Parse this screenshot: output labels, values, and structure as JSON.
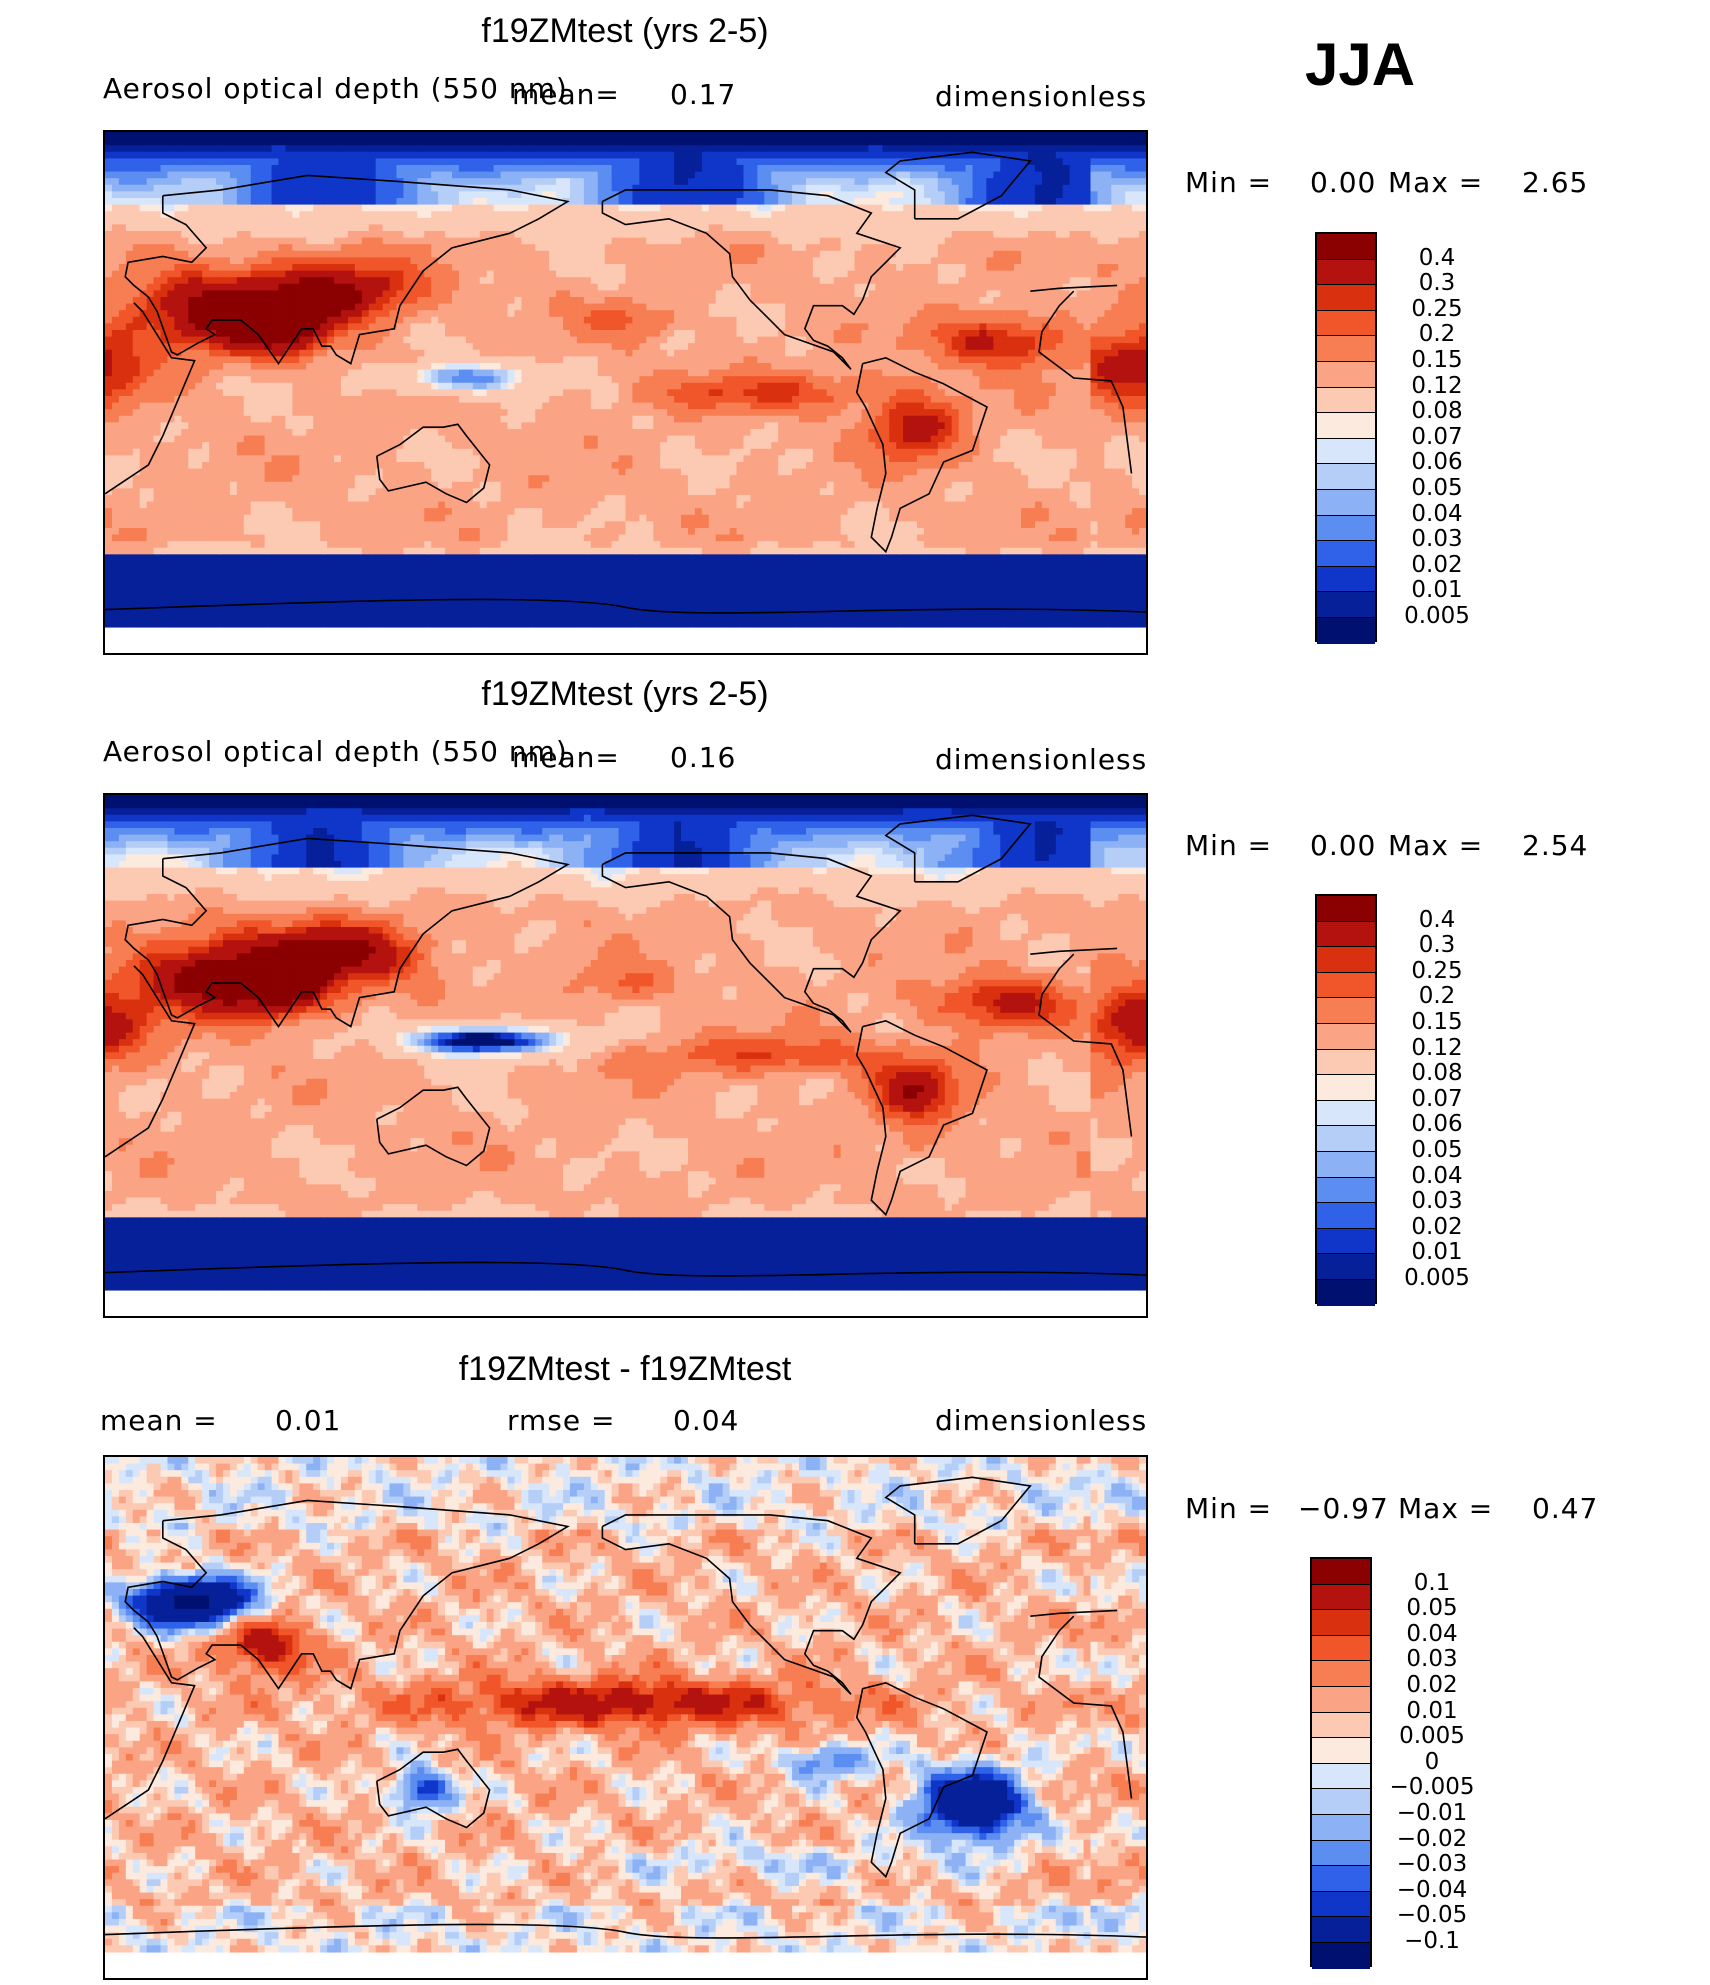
{
  "season": "JJA",
  "chart_data": [
    {
      "type": "heatmap",
      "title": "f19ZMtest (yrs 2-5)",
      "variable": "Aerosol optical depth (550 nm)",
      "units": "dimensionless",
      "mean_label": "mean=",
      "mean": "0.17",
      "min_label": "Min =",
      "min": "0.00",
      "max_label": "Max =",
      "max": "2.65",
      "levels": [
        "0.4",
        "0.3",
        "0.25",
        "0.2",
        "0.15",
        "0.12",
        "0.08",
        "0.07",
        "0.06",
        "0.05",
        "0.04",
        "0.03",
        "0.02",
        "0.01",
        "0.005"
      ],
      "colors": [
        "#8b0000",
        "#b4120e",
        "#d9300f",
        "#f0562a",
        "#f77d52",
        "#fba485",
        "#fccab3",
        "#fdeadf",
        "#d7e6fa",
        "#b5cef8",
        "#8cb1f5",
        "#5b8ef0",
        "#2f62e8",
        "#0f36c8",
        "#06209a",
        "#001070"
      ]
    },
    {
      "type": "heatmap",
      "title": "f19ZMtest (yrs 2-5)",
      "variable": "Aerosol optical depth (550 nm)",
      "units": "dimensionless",
      "mean_label": "mean=",
      "mean": "0.16",
      "min_label": "Min =",
      "min": "0.00",
      "max_label": "Max =",
      "max": "2.54",
      "levels": [
        "0.4",
        "0.3",
        "0.25",
        "0.2",
        "0.15",
        "0.12",
        "0.08",
        "0.07",
        "0.06",
        "0.05",
        "0.04",
        "0.03",
        "0.02",
        "0.01",
        "0.005"
      ],
      "colors": [
        "#8b0000",
        "#b4120e",
        "#d9300f",
        "#f0562a",
        "#f77d52",
        "#fba485",
        "#fccab3",
        "#fdeadf",
        "#d7e6fa",
        "#b5cef8",
        "#8cb1f5",
        "#5b8ef0",
        "#2f62e8",
        "#0f36c8",
        "#06209a",
        "#001070"
      ]
    },
    {
      "type": "heatmap",
      "title": "f19ZMtest - f19ZMtest",
      "units": "dimensionless",
      "mean_label": "mean =",
      "mean": "0.01",
      "rmse_label": "rmse =",
      "rmse": "0.04",
      "min_label": "Min =",
      "min": "−0.97",
      "max_label": "Max =",
      "max": "0.47",
      "levels": [
        "0.1",
        "0.05",
        "0.04",
        "0.03",
        "0.02",
        "0.01",
        "0.005",
        "0",
        "−0.005",
        "−0.01",
        "−0.02",
        "−0.03",
        "−0.04",
        "−0.05",
        "−0.1"
      ],
      "colors": [
        "#8b0000",
        "#b4120e",
        "#d9300f",
        "#f0562a",
        "#f77d52",
        "#fba485",
        "#fccab3",
        "#fdeadf",
        "#d7e6fa",
        "#b5cef8",
        "#8cb1f5",
        "#5b8ef0",
        "#2f62e8",
        "#0f36c8",
        "#06209a",
        "#001070"
      ]
    }
  ]
}
